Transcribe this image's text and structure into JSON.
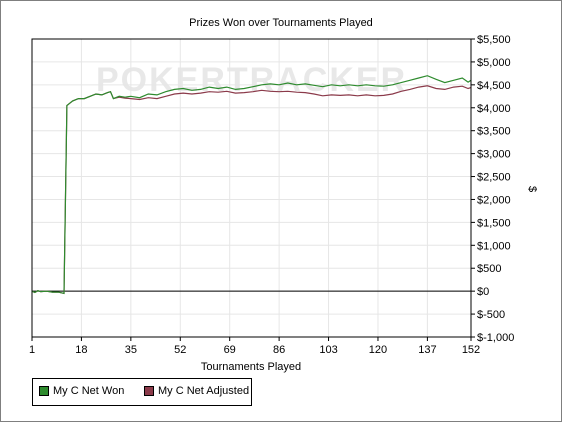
{
  "chart_data": {
    "type": "line",
    "title": "Prizes Won over Tournaments Played",
    "xlabel": "Tournaments Played",
    "ylabel": "$",
    "xlim": [
      1,
      152
    ],
    "ylim": [
      -1000,
      5500
    ],
    "x_ticks": [
      1,
      18,
      35,
      52,
      69,
      86,
      103,
      120,
      137,
      152
    ],
    "y_ticks": [
      {
        "v": 5500,
        "label": "$5,500"
      },
      {
        "v": 5000,
        "label": "$5,000"
      },
      {
        "v": 4500,
        "label": "$4,500"
      },
      {
        "v": 4000,
        "label": "$4,000"
      },
      {
        "v": 3500,
        "label": "$3,500"
      },
      {
        "v": 3000,
        "label": "$3,000"
      },
      {
        "v": 2500,
        "label": "$2,500"
      },
      {
        "v": 2000,
        "label": "$2,000"
      },
      {
        "v": 1500,
        "label": "$1,500"
      },
      {
        "v": 1000,
        "label": "$1,000"
      },
      {
        "v": 500,
        "label": "$500"
      },
      {
        "v": 0,
        "label": "$0"
      },
      {
        "v": -500,
        "label": "$-500"
      },
      {
        "v": -1000,
        "label": "$-1,000"
      }
    ],
    "grid": true,
    "legend_position": "bottom-left",
    "series": [
      {
        "name": "My C Net Won",
        "color": "#2e8b2e",
        "points": [
          [
            1,
            0
          ],
          [
            2,
            -30
          ],
          [
            3,
            10
          ],
          [
            4,
            -10
          ],
          [
            6,
            0
          ],
          [
            8,
            -20
          ],
          [
            10,
            -20
          ],
          [
            12,
            -50
          ],
          [
            13,
            4050
          ],
          [
            14,
            4100
          ],
          [
            15,
            4150
          ],
          [
            17,
            4200
          ],
          [
            19,
            4200
          ],
          [
            21,
            4250
          ],
          [
            23,
            4300
          ],
          [
            25,
            4280
          ],
          [
            27,
            4330
          ],
          [
            28,
            4350
          ],
          [
            29,
            4200
          ],
          [
            31,
            4250
          ],
          [
            33,
            4230
          ],
          [
            35,
            4250
          ],
          [
            38,
            4220
          ],
          [
            41,
            4300
          ],
          [
            44,
            4280
          ],
          [
            47,
            4350
          ],
          [
            50,
            4400
          ],
          [
            53,
            4420
          ],
          [
            56,
            4380
          ],
          [
            59,
            4400
          ],
          [
            62,
            4450
          ],
          [
            65,
            4420
          ],
          [
            68,
            4450
          ],
          [
            71,
            4400
          ],
          [
            74,
            4420
          ],
          [
            77,
            4460
          ],
          [
            80,
            4500
          ],
          [
            83,
            4520
          ],
          [
            86,
            4500
          ],
          [
            89,
            4540
          ],
          [
            92,
            4500
          ],
          [
            95,
            4520
          ],
          [
            98,
            4490
          ],
          [
            101,
            4460
          ],
          [
            104,
            4500
          ],
          [
            107,
            4480
          ],
          [
            110,
            4500
          ],
          [
            113,
            4480
          ],
          [
            116,
            4500
          ],
          [
            119,
            4480
          ],
          [
            122,
            4470
          ],
          [
            125,
            4500
          ],
          [
            128,
            4550
          ],
          [
            131,
            4600
          ],
          [
            134,
            4650
          ],
          [
            137,
            4700
          ],
          [
            140,
            4620
          ],
          [
            143,
            4550
          ],
          [
            146,
            4600
          ],
          [
            149,
            4650
          ],
          [
            151,
            4560
          ],
          [
            152,
            4600
          ]
        ]
      },
      {
        "name": "My C Net Adjusted",
        "color": "#8b3a4a",
        "points": [
          [
            1,
            0
          ],
          [
            2,
            -30
          ],
          [
            3,
            10
          ],
          [
            4,
            -10
          ],
          [
            6,
            0
          ],
          [
            8,
            -20
          ],
          [
            10,
            -20
          ],
          [
            12,
            -50
          ],
          [
            13,
            4050
          ],
          [
            14,
            4100
          ],
          [
            15,
            4150
          ],
          [
            17,
            4200
          ],
          [
            19,
            4200
          ],
          [
            21,
            4250
          ],
          [
            23,
            4300
          ],
          [
            25,
            4280
          ],
          [
            27,
            4330
          ],
          [
            28,
            4350
          ],
          [
            29,
            4200
          ],
          [
            31,
            4230
          ],
          [
            33,
            4210
          ],
          [
            35,
            4200
          ],
          [
            38,
            4180
          ],
          [
            41,
            4220
          ],
          [
            44,
            4200
          ],
          [
            47,
            4250
          ],
          [
            50,
            4300
          ],
          [
            53,
            4320
          ],
          [
            56,
            4300
          ],
          [
            59,
            4320
          ],
          [
            62,
            4350
          ],
          [
            65,
            4340
          ],
          [
            68,
            4360
          ],
          [
            71,
            4320
          ],
          [
            74,
            4330
          ],
          [
            77,
            4350
          ],
          [
            80,
            4380
          ],
          [
            83,
            4360
          ],
          [
            86,
            4350
          ],
          [
            89,
            4360
          ],
          [
            92,
            4340
          ],
          [
            95,
            4330
          ],
          [
            98,
            4300
          ],
          [
            101,
            4260
          ],
          [
            104,
            4280
          ],
          [
            107,
            4270
          ],
          [
            110,
            4280
          ],
          [
            113,
            4260
          ],
          [
            116,
            4280
          ],
          [
            119,
            4260
          ],
          [
            122,
            4270
          ],
          [
            125,
            4300
          ],
          [
            128,
            4360
          ],
          [
            131,
            4400
          ],
          [
            134,
            4450
          ],
          [
            137,
            4480
          ],
          [
            140,
            4420
          ],
          [
            143,
            4400
          ],
          [
            146,
            4450
          ],
          [
            149,
            4470
          ],
          [
            151,
            4420
          ],
          [
            152,
            4440
          ]
        ]
      }
    ]
  },
  "legend": {
    "items": [
      {
        "label": "My C Net Won",
        "color": "#2e8b2e"
      },
      {
        "label": "My C Net Adjusted",
        "color": "#8b3a4a"
      }
    ]
  },
  "watermark": "POKERTRACKER"
}
